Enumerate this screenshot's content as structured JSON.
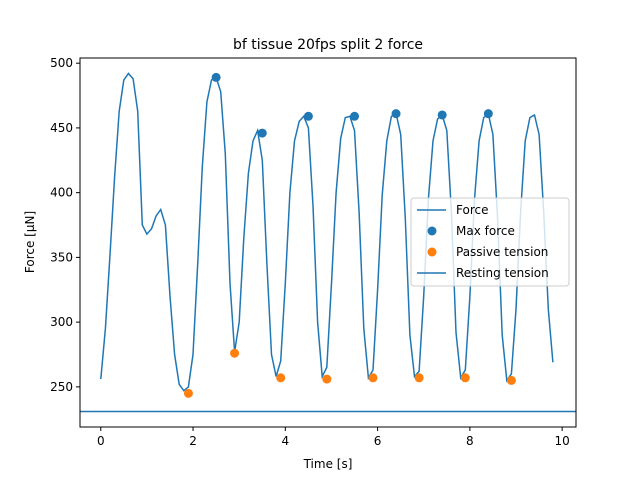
{
  "chart_data": {
    "type": "line",
    "title": "bf tissue 20fps split 2 force",
    "xlabel": "Time [s]",
    "ylabel": "Force [μN]",
    "xlim": [
      -0.45,
      10.3
    ],
    "ylim": [
      219,
      504
    ],
    "xticks": [
      0,
      2,
      4,
      6,
      8,
      10
    ],
    "yticks": [
      250,
      300,
      350,
      400,
      450,
      500
    ],
    "grid": false,
    "legend_position": "center-right",
    "colors": {
      "force": "#1f77b4",
      "max_force": "#1f77b4",
      "passive_tension": "#ff7f0e",
      "resting_tension": "#1f77b4"
    },
    "series": [
      {
        "name": "Force",
        "kind": "line",
        "x": [
          0.0,
          0.1,
          0.2,
          0.3,
          0.4,
          0.5,
          0.6,
          0.7,
          0.8,
          0.9,
          1.0,
          1.1,
          1.2,
          1.3,
          1.4,
          1.5,
          1.6,
          1.7,
          1.8,
          1.9,
          2.0,
          2.1,
          2.2,
          2.3,
          2.4,
          2.5,
          2.6,
          2.7,
          2.8,
          2.9,
          3.0,
          3.1,
          3.2,
          3.3,
          3.4,
          3.5,
          3.6,
          3.7,
          3.8,
          3.9,
          4.0,
          4.1,
          4.2,
          4.3,
          4.4,
          4.5,
          4.6,
          4.7,
          4.8,
          4.9,
          5.0,
          5.1,
          5.2,
          5.3,
          5.4,
          5.5,
          5.6,
          5.7,
          5.8,
          5.9,
          6.0,
          6.1,
          6.2,
          6.3,
          6.4,
          6.5,
          6.6,
          6.7,
          6.8,
          6.9,
          7.0,
          7.1,
          7.2,
          7.3,
          7.4,
          7.5,
          7.6,
          7.7,
          7.8,
          7.9,
          8.0,
          8.1,
          8.2,
          8.3,
          8.4,
          8.5,
          8.6,
          8.7,
          8.8,
          8.9,
          9.0,
          9.1,
          9.2,
          9.3,
          9.4,
          9.5,
          9.6,
          9.7,
          9.8
        ],
        "y": [
          256,
          295,
          352,
          412,
          463,
          487,
          492,
          488,
          463,
          375,
          368,
          372,
          382,
          387,
          375,
          320,
          275,
          252,
          247,
          250,
          275,
          345,
          420,
          470,
          487,
          489,
          478,
          430,
          330,
          277,
          300,
          365,
          415,
          440,
          448,
          425,
          345,
          275,
          258,
          270,
          330,
          400,
          440,
          455,
          459,
          450,
          390,
          300,
          258,
          265,
          330,
          400,
          442,
          458,
          459,
          448,
          385,
          295,
          257,
          263,
          325,
          398,
          440,
          459,
          461,
          445,
          380,
          290,
          258,
          262,
          320,
          395,
          440,
          457,
          460,
          448,
          385,
          292,
          257,
          263,
          320,
          395,
          440,
          458,
          461,
          445,
          380,
          290,
          255,
          260,
          310,
          385,
          440,
          458,
          460,
          445,
          385,
          310,
          269
        ]
      },
      {
        "name": "Max force",
        "kind": "scatter",
        "x": [
          2.5,
          3.5,
          4.5,
          5.5,
          6.4,
          7.4,
          8.4
        ],
        "y": [
          489,
          446,
          459,
          459,
          461,
          460,
          461
        ]
      },
      {
        "name": "Passive tension",
        "kind": "scatter",
        "x": [
          1.9,
          2.9,
          3.9,
          4.9,
          5.9,
          6.9,
          7.9,
          8.9
        ],
        "y": [
          245,
          276,
          257,
          256,
          257,
          257,
          257,
          255
        ]
      },
      {
        "name": "Resting tension",
        "kind": "hline",
        "y": 231
      }
    ]
  }
}
